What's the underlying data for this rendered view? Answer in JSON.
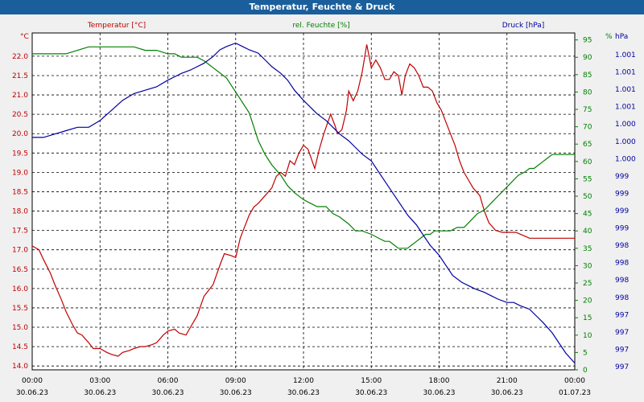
{
  "window": {
    "title": "Temperatur, Feuchte & Druck"
  },
  "chart_data": {
    "type": "line",
    "title": "Temperatur, Feuchte & Druck",
    "colors": {
      "temperature": "#c00000",
      "humidity": "#008000",
      "pressure": "#0000a0",
      "grid": "#000000",
      "background": "#ffffff",
      "titlebar": "#1a5f9c"
    },
    "axes": {
      "temperature": {
        "label": "Temperatur [°C]",
        "unit": "°C",
        "min": 13.9,
        "max": 22.6,
        "ticks": [
          "14.0",
          "14.5",
          "15.0",
          "15.5",
          "16.0",
          "16.5",
          "17.0",
          "17.5",
          "18.0",
          "18.5",
          "19.0",
          "19.5",
          "20.0",
          "20.5",
          "21.0",
          "21.5",
          "22.0"
        ]
      },
      "humidity": {
        "label": "rel. Feuchte [%]",
        "unit": "%",
        "min": 0,
        "max": 97,
        "ticks": [
          "0",
          "5",
          "10",
          "15",
          "20",
          "25",
          "30",
          "35",
          "40",
          "45",
          "50",
          "55",
          "60",
          "65",
          "70",
          "75",
          "80",
          "85",
          "90",
          "95"
        ]
      },
      "pressure": {
        "label": "Druck [hPa]",
        "unit": "hPa",
        "min": 996.5,
        "max": 1001.5,
        "ticks": [
          "997",
          "997",
          "997",
          "997",
          "998",
          "998",
          "998",
          "998",
          "999",
          "999",
          "999",
          "999",
          "1.000",
          "1.000",
          "1.000",
          "1.001",
          "1.001",
          "1.001",
          "1.001"
        ]
      }
    },
    "x_ticks": [
      {
        "time": "00:00",
        "date": "30.06.23"
      },
      {
        "time": "03:00",
        "date": "30.06.23"
      },
      {
        "time": "06:00",
        "date": "30.06.23"
      },
      {
        "time": "09:00",
        "date": "30.06.23"
      },
      {
        "time": "12:00",
        "date": "30.06.23"
      },
      {
        "time": "15:00",
        "date": "30.06.23"
      },
      {
        "time": "18:00",
        "date": "30.06.23"
      },
      {
        "time": "21:00",
        "date": "30.06.23"
      },
      {
        "time": "00:00",
        "date": "01.07.23"
      }
    ],
    "x_range_hours": [
      0,
      24
    ],
    "series": [
      {
        "name": "Temperatur",
        "key": "temperature",
        "axis": "temperature",
        "x": [
          0,
          0.3,
          0.5,
          0.8,
          1,
          1.3,
          1.5,
          1.8,
          2,
          2.2,
          2.5,
          2.7,
          3,
          3.3,
          3.5,
          3.8,
          4,
          4.3,
          4.5,
          4.8,
          5,
          5.3,
          5.5,
          5.8,
          6,
          6.3,
          6.5,
          6.8,
          7,
          7.3,
          7.6,
          8,
          8.3,
          8.5,
          8.8,
          9,
          9.2,
          9.4,
          9.6,
          9.8,
          10,
          10.3,
          10.6,
          10.8,
          11,
          11.2,
          11.4,
          11.6,
          11.8,
          12,
          12.2,
          12.5,
          12.7,
          12.9,
          13.2,
          13.4,
          13.5,
          13.7,
          13.9,
          14,
          14.2,
          14.4,
          14.6,
          14.8,
          15,
          15.2,
          15.4,
          15.6,
          15.8,
          16,
          16.2,
          16.35,
          16.5,
          16.7,
          16.9,
          17.1,
          17.3,
          17.5,
          17.7,
          17.9,
          18.1,
          18.3,
          18.5,
          18.7,
          18.9,
          19.1,
          19.3,
          19.5,
          19.8,
          20,
          20.2,
          20.5,
          20.8,
          21.1,
          21.4,
          21.6,
          21.8,
          22,
          22.2,
          22.4,
          22.6,
          22.8,
          23,
          23.2,
          23.5,
          23.8,
          24
        ],
        "values": [
          17.1,
          17,
          16.75,
          16.4,
          16.1,
          15.7,
          15.4,
          15.05,
          14.85,
          14.8,
          14.6,
          14.45,
          14.45,
          14.35,
          14.3,
          14.25,
          14.35,
          14.4,
          14.45,
          14.5,
          14.5,
          14.55,
          14.6,
          14.8,
          14.9,
          14.95,
          14.85,
          14.8,
          15.0,
          15.3,
          15.8,
          16.1,
          16.6,
          16.9,
          16.85,
          16.8,
          17.3,
          17.6,
          17.9,
          18.1,
          18.2,
          18.4,
          18.6,
          18.9,
          19.0,
          18.9,
          19.3,
          19.2,
          19.5,
          19.7,
          19.6,
          19.1,
          19.6,
          20.0,
          20.5,
          20.2,
          20.0,
          20.1,
          20.6,
          21.1,
          20.85,
          21.1,
          21.6,
          22.3,
          21.7,
          21.9,
          21.7,
          21.4,
          21.4,
          21.6,
          21.5,
          21.0,
          21.5,
          21.8,
          21.7,
          21.5,
          21.2,
          21.2,
          21.1,
          20.8,
          20.6,
          20.3,
          20.0,
          19.7,
          19.3,
          19.0,
          18.8,
          18.6,
          18.4,
          18.0,
          17.7,
          17.5,
          17.45,
          17.45,
          17.45,
          17.4,
          17.35,
          17.3,
          17.3,
          17.3,
          17.3,
          17.3,
          17.3,
          17.3,
          17.3,
          17.3,
          17.3
        ]
      },
      {
        "name": "rel. Feuchte",
        "key": "humidity",
        "axis": "humidity",
        "x": [
          0,
          0.5,
          1,
          1.5,
          2,
          2.5,
          3,
          3.5,
          4,
          4.5,
          5,
          5.5,
          6,
          6.3,
          6.6,
          7,
          7.3,
          7.6,
          7.8,
          8,
          8.2,
          8.4,
          8.6,
          8.8,
          9,
          9.3,
          9.6,
          9.8,
          10,
          10.3,
          10.6,
          11,
          11.3,
          11.6,
          12,
          12.3,
          12.6,
          13,
          13.3,
          13.6,
          14,
          14.3,
          14.6,
          15,
          15.3,
          15.6,
          15.8,
          16,
          16.2,
          16.4,
          16.6,
          16.8,
          17,
          17.2,
          17.4,
          17.6,
          17.8,
          18,
          18.2,
          18.5,
          18.8,
          19.1,
          19.4,
          19.7,
          20,
          20.3,
          20.6,
          20.9,
          21.2,
          21.5,
          21.8,
          22,
          22.2,
          22.4,
          22.6,
          22.8,
          23,
          23.3,
          23.6,
          23.8,
          24
        ],
        "values": [
          91,
          91,
          91,
          91,
          92,
          93,
          93,
          93,
          93,
          93,
          92,
          92,
          91,
          91,
          90,
          90,
          90,
          89,
          88,
          87,
          86,
          85,
          84,
          82,
          80,
          77,
          74,
          70,
          66,
          62,
          59,
          56,
          53,
          51,
          49,
          48,
          47,
          47,
          45,
          44,
          42,
          40,
          40,
          39,
          38,
          37,
          37,
          36,
          35,
          35,
          35,
          36,
          37,
          38,
          39,
          39,
          40,
          40,
          40,
          40,
          41,
          41,
          43,
          45,
          46,
          48,
          50,
          52,
          54,
          56,
          57,
          58,
          58,
          59,
          60,
          61,
          62,
          62,
          62,
          62,
          62
        ]
      },
      {
        "name": "Druck",
        "key": "pressure",
        "axis": "pressure",
        "x": [
          0,
          0.5,
          1,
          1.5,
          2,
          2.5,
          3,
          3.5,
          4,
          4.5,
          5,
          5.5,
          6,
          6.3,
          6.6,
          7,
          7.3,
          7.6,
          8,
          8.3,
          8.6,
          9,
          9.3,
          9.6,
          10,
          10.3,
          10.6,
          11,
          11.3,
          11.6,
          12,
          12.3,
          12.6,
          13,
          13.3,
          13.6,
          14,
          14.3,
          14.6,
          15,
          15.3,
          15.6,
          16,
          16.3,
          16.6,
          17,
          17.3,
          17.6,
          18,
          18.3,
          18.6,
          19,
          19.3,
          19.6,
          20,
          20.3,
          20.6,
          21,
          21.3,
          21.6,
          22,
          22.3,
          22.6,
          23,
          23.3,
          23.6,
          24
        ],
        "values": [
          999.95,
          999.95,
          1000.0,
          1000.05,
          1000.1,
          1000.1,
          1000.2,
          1000.35,
          1000.5,
          1000.6,
          1000.65,
          1000.7,
          1000.8,
          1000.85,
          1000.9,
          1000.95,
          1001.0,
          1001.05,
          1001.15,
          1001.25,
          1001.3,
          1001.35,
          1001.3,
          1001.25,
          1001.2,
          1001.1,
          1001.0,
          1000.9,
          1000.8,
          1000.65,
          1000.5,
          1000.4,
          1000.3,
          1000.2,
          1000.1,
          1000.0,
          999.9,
          999.8,
          999.7,
          999.6,
          999.45,
          999.3,
          999.1,
          998.95,
          998.8,
          998.65,
          998.5,
          998.35,
          998.2,
          998.05,
          997.9,
          997.8,
          997.75,
          997.7,
          997.65,
          997.6,
          997.55,
          997.5,
          997.5,
          997.45,
          997.4,
          997.3,
          997.2,
          997.05,
          996.9,
          996.75,
          996.6
        ]
      }
    ]
  }
}
